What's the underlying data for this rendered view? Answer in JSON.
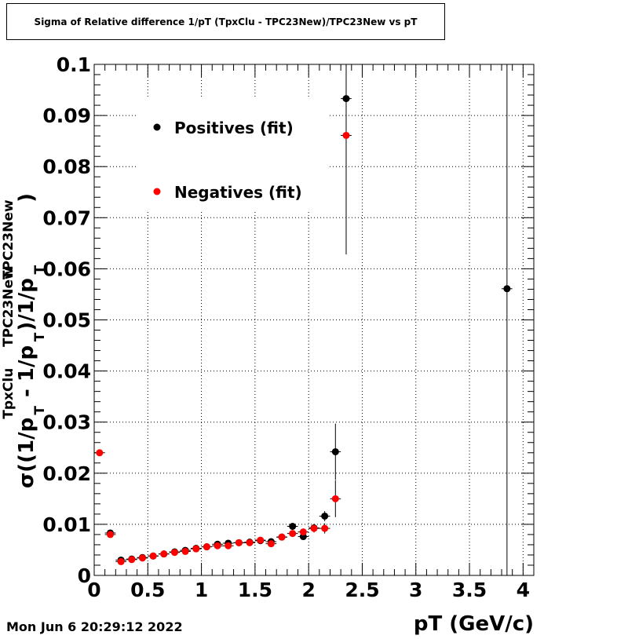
{
  "header": {
    "title": "Sigma of Relative difference 1/pT (TpxClu - TPC23New)/TPC23New vs pT"
  },
  "footer": {
    "timestamp": "Mon Jun  6 20:29:12 2022"
  },
  "ylabel_parts": {
    "sigma": "σ",
    "open": "((1/p",
    "sub1": "T",
    "sup1": "TpxClu",
    "mid": " - 1/p",
    "sub2": "T",
    "sup2": "TPC23New",
    "close1": ")/1/p",
    "sub3": "T",
    "sup3": "TPC23New",
    "close2": ")"
  },
  "chart_data": {
    "type": "scatter",
    "title": "Sigma of Relative difference 1/pT (TpxClu - TPC23New)/TPC23New vs pT",
    "xlabel": "pT (GeV/c)",
    "ylabel": "σ((1/pT^TpxClu - 1/pT^TPC23New)/1/pT^TPC23New)",
    "xlim": [
      0,
      4.1
    ],
    "ylim": [
      0,
      0.1
    ],
    "x_ticks": [
      "0",
      "0.5",
      "1",
      "1.5",
      "2",
      "2.5",
      "3",
      "3.5",
      "4"
    ],
    "x_tick_values": [
      0,
      0.5,
      1,
      1.5,
      2,
      2.5,
      3,
      3.5,
      4
    ],
    "y_ticks": [
      "0",
      "0.01",
      "0.02",
      "0.03",
      "0.04",
      "0.05",
      "0.06",
      "0.07",
      "0.08",
      "0.09",
      "0.1"
    ],
    "y_tick_values": [
      0,
      0.01,
      0.02,
      0.03,
      0.04,
      0.05,
      0.06,
      0.07,
      0.08,
      0.09,
      0.1
    ],
    "grid": true,
    "legend_placement": "top-left",
    "series": [
      {
        "name": "Positives (fit)",
        "color": "#000000",
        "points": [
          {
            "x": 0.15,
            "y": 0.0083,
            "err": 0.0006
          },
          {
            "x": 0.25,
            "y": 0.003,
            "err": 0.0002
          },
          {
            "x": 0.35,
            "y": 0.0032,
            "err": 0.0002
          },
          {
            "x": 0.45,
            "y": 0.0035,
            "err": 0.0002
          },
          {
            "x": 0.55,
            "y": 0.0038,
            "err": 0.0002
          },
          {
            "x": 0.65,
            "y": 0.0042,
            "err": 0.0002
          },
          {
            "x": 0.75,
            "y": 0.0046,
            "err": 0.0002
          },
          {
            "x": 0.85,
            "y": 0.0049,
            "err": 0.0002
          },
          {
            "x": 0.95,
            "y": 0.0053,
            "err": 0.0002
          },
          {
            "x": 1.05,
            "y": 0.0056,
            "err": 0.0002
          },
          {
            "x": 1.15,
            "y": 0.0061,
            "err": 0.0003
          },
          {
            "x": 1.25,
            "y": 0.0063,
            "err": 0.0003
          },
          {
            "x": 1.35,
            "y": 0.0064,
            "err": 0.0003
          },
          {
            "x": 1.45,
            "y": 0.0065,
            "err": 0.0003
          },
          {
            "x": 1.55,
            "y": 0.0068,
            "err": 0.0003
          },
          {
            "x": 1.65,
            "y": 0.0066,
            "err": 0.0004
          },
          {
            "x": 1.75,
            "y": 0.0075,
            "err": 0.0004
          },
          {
            "x": 1.85,
            "y": 0.0096,
            "err": 0.0005
          },
          {
            "x": 1.95,
            "y": 0.0076,
            "err": 0.0006
          },
          {
            "x": 2.05,
            "y": 0.0093,
            "err": 0.0008
          },
          {
            "x": 2.15,
            "y": 0.0116,
            "err": 0.001
          },
          {
            "x": 2.25,
            "y": 0.0242,
            "err": 0.0055
          },
          {
            "x": 2.35,
            "y": 0.0933,
            "err": 0.0305
          },
          {
            "x": 3.85,
            "y": 0.0561,
            "err": 0.0561
          }
        ]
      },
      {
        "name": "Negatives (fit)",
        "color": "#ff0000",
        "points": [
          {
            "x": 0.05,
            "y": 0.024,
            "err": 0.0003
          },
          {
            "x": 0.15,
            "y": 0.008,
            "err": 0.0006
          },
          {
            "x": 0.25,
            "y": 0.0027,
            "err": 0.0002
          },
          {
            "x": 0.35,
            "y": 0.0031,
            "err": 0.0002
          },
          {
            "x": 0.45,
            "y": 0.0034,
            "err": 0.0002
          },
          {
            "x": 0.55,
            "y": 0.0038,
            "err": 0.0002
          },
          {
            "x": 0.65,
            "y": 0.0042,
            "err": 0.0002
          },
          {
            "x": 0.75,
            "y": 0.0045,
            "err": 0.0002
          },
          {
            "x": 0.85,
            "y": 0.0047,
            "err": 0.0002
          },
          {
            "x": 0.95,
            "y": 0.0052,
            "err": 0.0002
          },
          {
            "x": 1.05,
            "y": 0.0056,
            "err": 0.0002
          },
          {
            "x": 1.15,
            "y": 0.0058,
            "err": 0.0003
          },
          {
            "x": 1.25,
            "y": 0.0058,
            "err": 0.0003
          },
          {
            "x": 1.35,
            "y": 0.0064,
            "err": 0.0003
          },
          {
            "x": 1.45,
            "y": 0.0064,
            "err": 0.0003
          },
          {
            "x": 1.55,
            "y": 0.0069,
            "err": 0.0003
          },
          {
            "x": 1.65,
            "y": 0.0062,
            "err": 0.0004
          },
          {
            "x": 1.75,
            "y": 0.0075,
            "err": 0.0004
          },
          {
            "x": 1.85,
            "y": 0.0082,
            "err": 0.0005
          },
          {
            "x": 1.95,
            "y": 0.0085,
            "err": 0.0006
          },
          {
            "x": 2.05,
            "y": 0.0092,
            "err": 0.0008
          },
          {
            "x": 2.15,
            "y": 0.0092,
            "err": 0.001
          },
          {
            "x": 2.25,
            "y": 0.015,
            "err": 0.0036
          },
          {
            "x": 2.35,
            "y": 0.0861,
            "err": 0.0
          }
        ]
      }
    ]
  }
}
